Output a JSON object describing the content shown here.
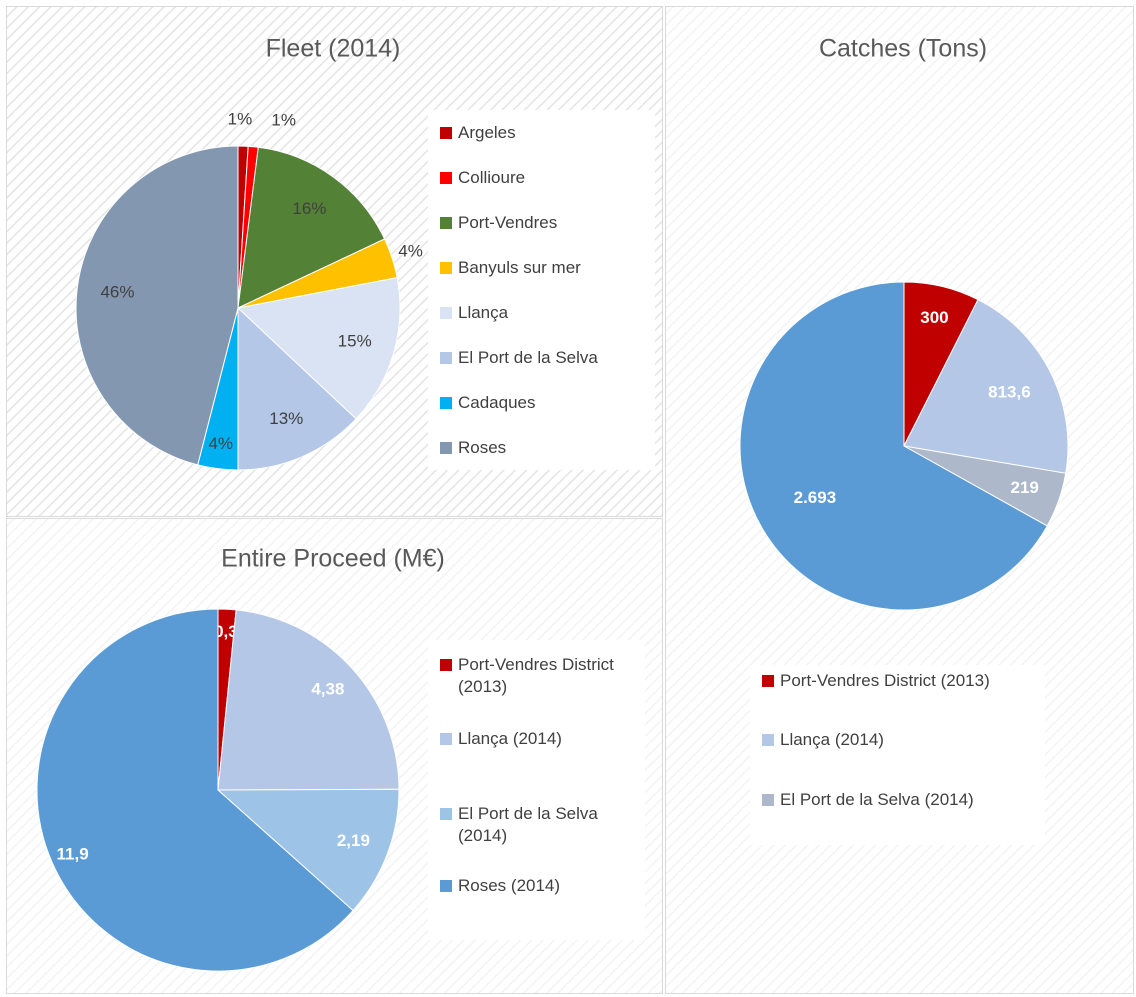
{
  "chart_data": [
    {
      "type": "pie",
      "title": "Fleet (2014)",
      "categories": [
        "Argeles",
        "Collioure",
        "Port-Vendres",
        "Banyuls sur mer",
        "Llança",
        "El Port de la Selva",
        "Cadaques",
        "Roses"
      ],
      "values": [
        1,
        1,
        16,
        4,
        15,
        13,
        4,
        46
      ],
      "value_labels": [
        "1%",
        "1%",
        "16%",
        "4%",
        "15%",
        "13%",
        "4%",
        "46%"
      ],
      "colors": [
        "#c00000",
        "#ff0000",
        "#538135",
        "#ffc000",
        "#dae3f3",
        "#b4c7e7",
        "#00b0f0",
        "#8497b0"
      ]
    },
    {
      "type": "pie",
      "title": "Catches (Tons)",
      "categories": [
        "Port-Vendres District (2013)",
        "Llança (2014)",
        "El Port de la Selva (2014)",
        null
      ],
      "values": [
        300,
        813.6,
        219,
        2693
      ],
      "value_labels": [
        "300",
        "813,6",
        "219",
        "2.693"
      ],
      "colors": [
        "#c00000",
        "#b4c7e7",
        "#adb9ca",
        "#5b9bd5"
      ]
    },
    {
      "type": "pie",
      "title": "Entire Proceed (M€)",
      "categories": [
        "Port-Vendres District (2013)",
        "Llança (2014)",
        "El Port de la Selva (2014)",
        "Roses (2014)"
      ],
      "values": [
        0.3,
        4.38,
        2.19,
        11.9
      ],
      "value_labels": [
        "0,3",
        "4,38",
        "2,19",
        "11,9"
      ],
      "colors": [
        "#c00000",
        "#b4c7e7",
        "#9dc3e6",
        "#5b9bd5"
      ]
    }
  ]
}
